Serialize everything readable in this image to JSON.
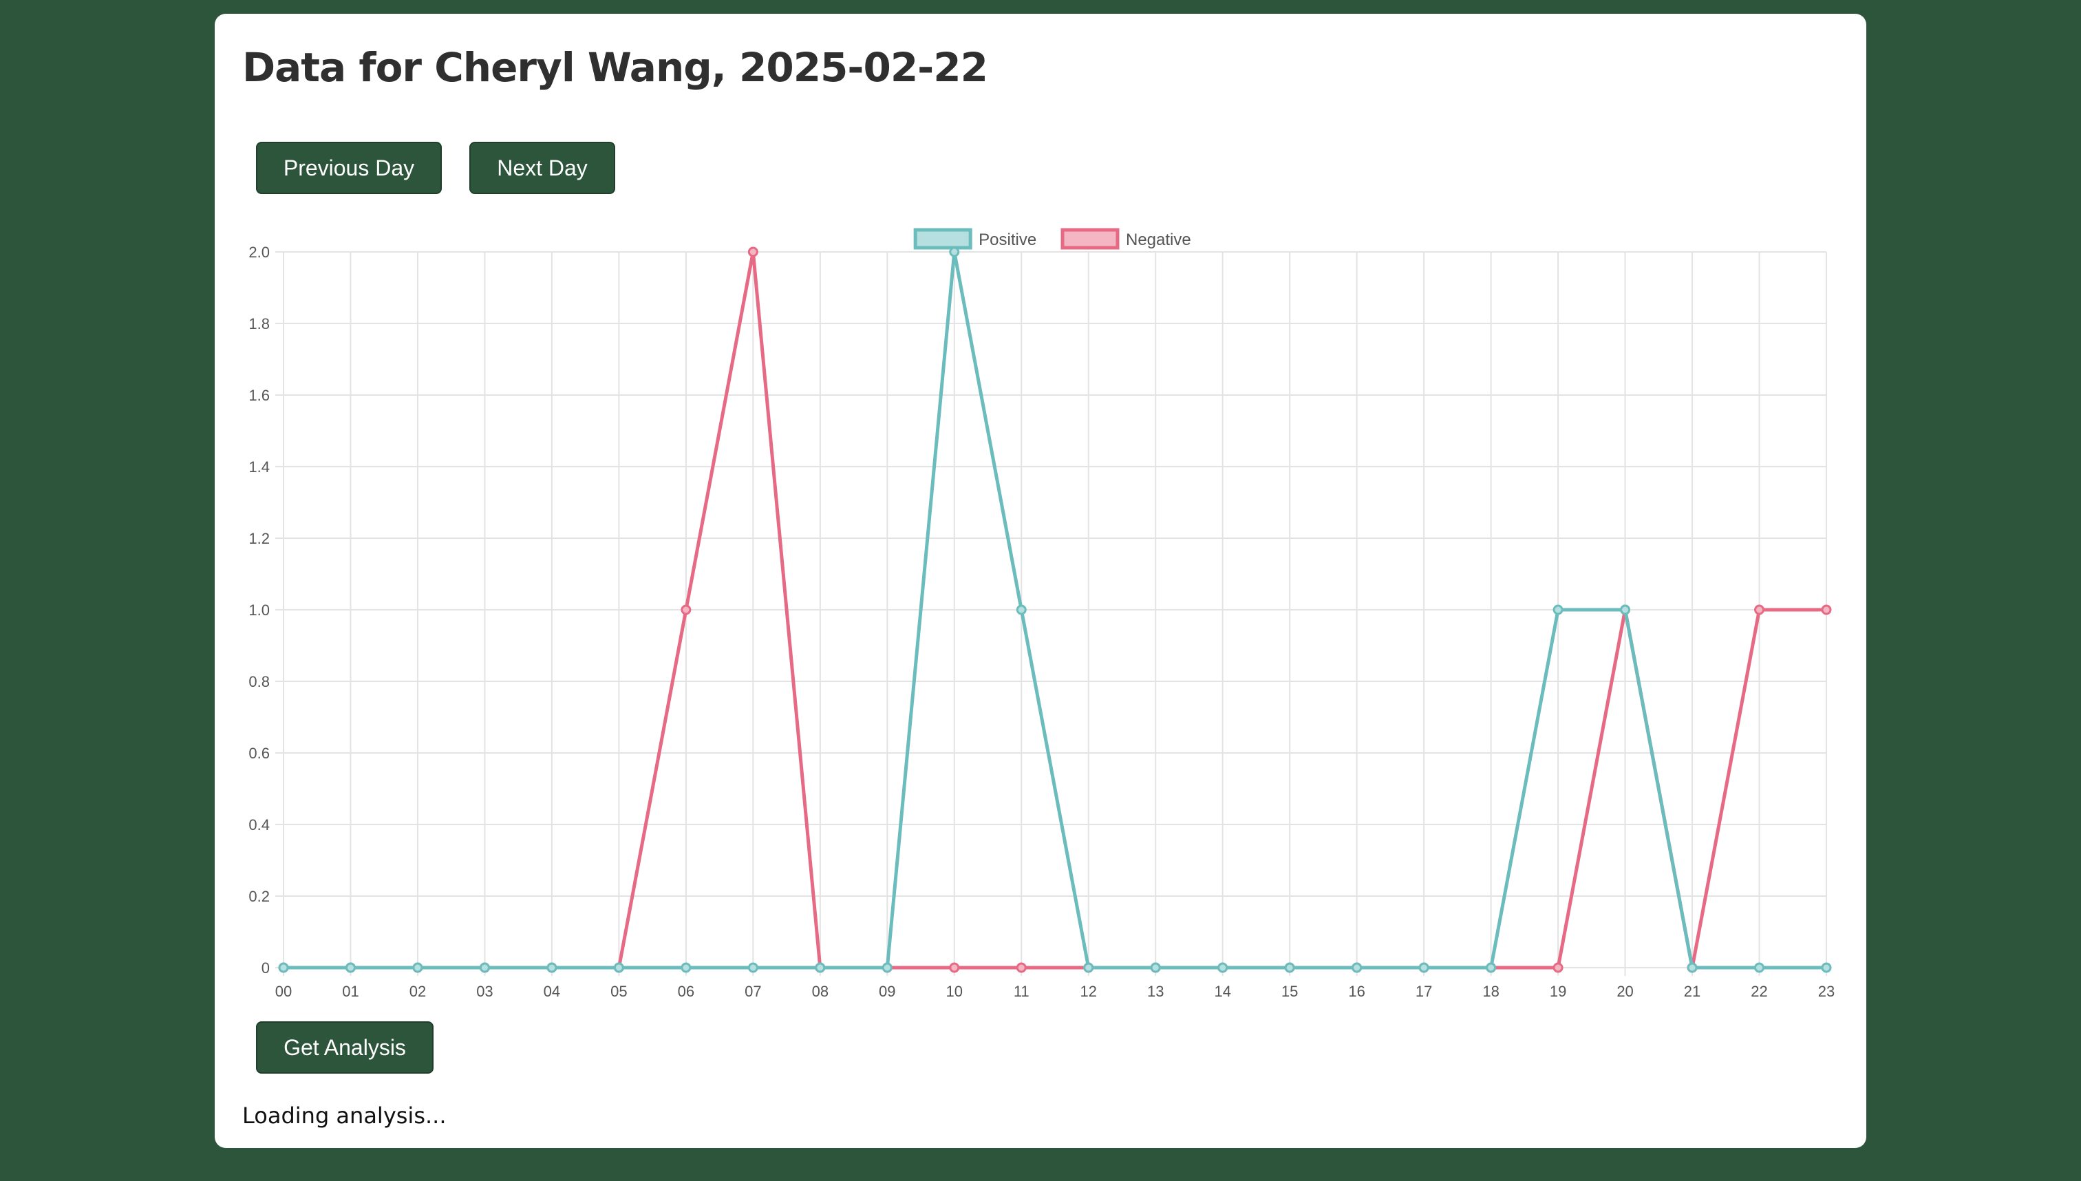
{
  "page": {
    "title": "Data for Cheryl Wang, 2025-02-22",
    "buttons": {
      "previous_day": "Previous Day",
      "next_day": "Next Day",
      "get_analysis": "Get Analysis"
    },
    "status_text": "Loading analysis..."
  },
  "colors": {
    "background": "#2c553b",
    "positive_line": "#6bbcbd",
    "positive_fill": "#b6dfe0",
    "negative_line": "#e76a85",
    "negative_fill": "#f5b6c3"
  },
  "chart_data": {
    "type": "line",
    "categories": [
      "00",
      "01",
      "02",
      "03",
      "04",
      "05",
      "06",
      "07",
      "08",
      "09",
      "10",
      "11",
      "12",
      "13",
      "14",
      "15",
      "16",
      "17",
      "18",
      "19",
      "20",
      "21",
      "22",
      "23"
    ],
    "series": [
      {
        "name": "Positive",
        "values": [
          0,
          0,
          0,
          0,
          0,
          0,
          0,
          0,
          0,
          0,
          2,
          1,
          0,
          0,
          0,
          0,
          0,
          0,
          0,
          1,
          1,
          0,
          0,
          0
        ]
      },
      {
        "name": "Negative",
        "values": [
          0,
          0,
          0,
          0,
          0,
          0,
          1,
          2,
          0,
          0,
          0,
          0,
          0,
          0,
          0,
          0,
          0,
          0,
          0,
          0,
          1,
          0,
          1,
          1
        ]
      }
    ],
    "ylim": [
      0,
      2
    ],
    "yticks": [
      "0",
      "0.2",
      "0.4",
      "0.6",
      "0.8",
      "1.0",
      "1.2",
      "1.4",
      "1.6",
      "1.8",
      "2.0"
    ],
    "grid": true,
    "legend": "top-center"
  }
}
